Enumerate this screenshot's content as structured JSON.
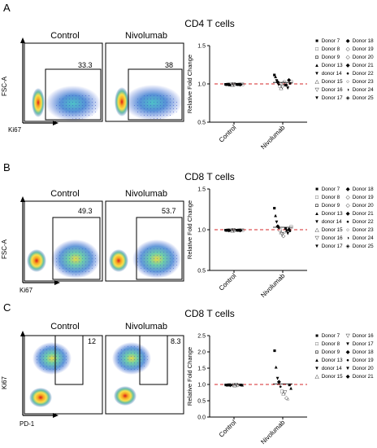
{
  "panels": [
    {
      "letter": "A",
      "title": "CD4 T cells",
      "flow_y_label": "FSC-A",
      "flow_x_label": "Ki67",
      "plots": [
        {
          "condition": "Control",
          "gate_value": "33.3"
        },
        {
          "condition": "Nivolumab",
          "gate_value": "38"
        }
      ],
      "legend": [
        {
          "sym": "■",
          "label": "Donor 7"
        },
        {
          "sym": "□",
          "label": "Donor 8"
        },
        {
          "sym": "◘",
          "label": "Donor 9"
        },
        {
          "sym": "▲",
          "label": "Donor 13"
        },
        {
          "sym": "▼",
          "label": "donor 14"
        },
        {
          "sym": "△",
          "label": "Donor 15"
        },
        {
          "sym": "▽",
          "label": "Donor 16"
        },
        {
          "sym": "▼",
          "label": "Donor 17"
        },
        {
          "sym": "◆",
          "label": "Donor 18"
        },
        {
          "sym": "◇",
          "label": "Donor 19"
        },
        {
          "sym": "◇",
          "label": "Donor 20"
        },
        {
          "sym": "◆",
          "label": "Donor 21"
        },
        {
          "sym": "●",
          "label": "Donor 22"
        },
        {
          "sym": "○",
          "label": "Donor 23"
        },
        {
          "sym": "◑",
          "label": "Donor 24"
        },
        {
          "sym": "◈",
          "label": "Donor 25"
        }
      ]
    },
    {
      "letter": "B",
      "title": "CD8 T cells",
      "flow_y_label": "FSC-A",
      "flow_x_label": "Ki67",
      "plots": [
        {
          "condition": "Control",
          "gate_value": "49.3"
        },
        {
          "condition": "Nivolumab",
          "gate_value": "53.7"
        }
      ],
      "legend": [
        {
          "sym": "■",
          "label": "Donor 7"
        },
        {
          "sym": "□",
          "label": "Donor 8"
        },
        {
          "sym": "◘",
          "label": "Donor 9"
        },
        {
          "sym": "▲",
          "label": "Donor 13"
        },
        {
          "sym": "▼",
          "label": "donor 14"
        },
        {
          "sym": "△",
          "label": "Donor 15"
        },
        {
          "sym": "▽",
          "label": "Donor 16"
        },
        {
          "sym": "▼",
          "label": "Donor 17"
        },
        {
          "sym": "◆",
          "label": "Donor 18"
        },
        {
          "sym": "◇",
          "label": "Donor 19"
        },
        {
          "sym": "◇",
          "label": "Donor 20"
        },
        {
          "sym": "◆",
          "label": "Donor 21"
        },
        {
          "sym": "●",
          "label": "Donor 22"
        },
        {
          "sym": "○",
          "label": "Donor 23"
        },
        {
          "sym": "◑",
          "label": "Donor 24"
        },
        {
          "sym": "◈",
          "label": "Donor 25"
        }
      ]
    },
    {
      "letter": "C",
      "title": "CD8 T cells",
      "flow_y_label": "Ki67",
      "flow_x_label": "PD-1",
      "plots": [
        {
          "condition": "Control",
          "gate_value": "12"
        },
        {
          "condition": "Nivolumab",
          "gate_value": "8.3"
        }
      ],
      "legend": [
        {
          "sym": "■",
          "label": "Donor 7"
        },
        {
          "sym": "□",
          "label": "Donor 8"
        },
        {
          "sym": "◘",
          "label": "Donor 9"
        },
        {
          "sym": "▲",
          "label": "Donor 13"
        },
        {
          "sym": "▼",
          "label": "donor 14"
        },
        {
          "sym": "△",
          "label": "Donor 15"
        },
        {
          "sym": "▽",
          "label": "Donor 16"
        },
        {
          "sym": "▼",
          "label": "Donor 17"
        },
        {
          "sym": "◆",
          "label": "Donor 18"
        },
        {
          "sym": "●",
          "label": "Donor 19"
        },
        {
          "sym": "▼",
          "label": "Donor 20"
        },
        {
          "sym": "◆",
          "label": "Donor 21"
        }
      ]
    }
  ],
  "chart_data": [
    {
      "type": "scatter",
      "panel": "A",
      "title": "",
      "xlabel": "",
      "ylabel": "Relative Fold Change",
      "categories": [
        "Control",
        "Nivolumab"
      ],
      "ylim": [
        0.5,
        1.5
      ],
      "yticks": [
        "0.5",
        "1.0",
        "1.5"
      ],
      "reference_line": 1.0,
      "colors": {
        "reference_line": "#d62728"
      },
      "series": [
        {
          "category": "Control",
          "values": [
            1.0,
            1.0,
            1.0,
            1.0,
            0.99,
            1.0,
            1.0,
            1.0,
            1.0,
            1.01,
            1.0,
            1.0,
            1.0,
            1.0,
            1.0,
            1.0
          ]
        },
        {
          "category": "Nivolumab",
          "values": [
            1.12,
            1.1,
            1.05,
            1.03,
            1.0,
            0.98,
            0.96,
            0.97,
            1.02,
            1.04,
            0.99,
            1.0,
            0.95,
            1.06,
            1.01,
            1.03
          ]
        }
      ]
    },
    {
      "type": "scatter",
      "panel": "B",
      "title": "",
      "xlabel": "",
      "ylabel": "Relative Fold Change",
      "categories": [
        "Control",
        "Nivolumab"
      ],
      "ylim": [
        0.5,
        1.5
      ],
      "yticks": [
        "0.5",
        "1.0",
        "1.5"
      ],
      "reference_line": 1.0,
      "colors": {
        "reference_line": "#d62728"
      },
      "series": [
        {
          "category": "Control",
          "values": [
            1.0,
            1.0,
            1.0,
            1.0,
            1.0,
            1.0,
            1.0,
            1.0,
            1.0,
            1.0,
            1.0,
            1.0,
            1.0,
            1.0,
            1.0,
            1.0
          ]
        },
        {
          "category": "Nivolumab",
          "values": [
            1.27,
            1.18,
            1.1,
            1.05,
            1.03,
            1.0,
            0.98,
            0.95,
            0.93,
            0.97,
            1.02,
            1.0,
            0.96,
            1.01,
            0.99,
            1.04
          ]
        }
      ]
    },
    {
      "type": "scatter",
      "panel": "C",
      "title": "",
      "xlabel": "",
      "ylabel": "Relative Fold Change",
      "categories": [
        "Control",
        "Nivolumab"
      ],
      "ylim": [
        0.0,
        2.5
      ],
      "yticks": [
        "0.0",
        "0.5",
        "1.0",
        "1.5",
        "2.0",
        "2.5"
      ],
      "reference_line": 1.0,
      "colors": {
        "reference_line": "#d62728"
      },
      "series": [
        {
          "category": "Control",
          "values": [
            1.0,
            1.0,
            1.0,
            1.0,
            1.0,
            1.0,
            1.0,
            1.0,
            1.0,
            1.0,
            1.0,
            1.0
          ]
        },
        {
          "category": "Nivolumab",
          "values": [
            2.05,
            1.55,
            1.2,
            1.1,
            0.95,
            0.8,
            0.75,
            0.78,
            0.6,
            0.55,
            1.0,
            0.9
          ]
        }
      ]
    }
  ]
}
